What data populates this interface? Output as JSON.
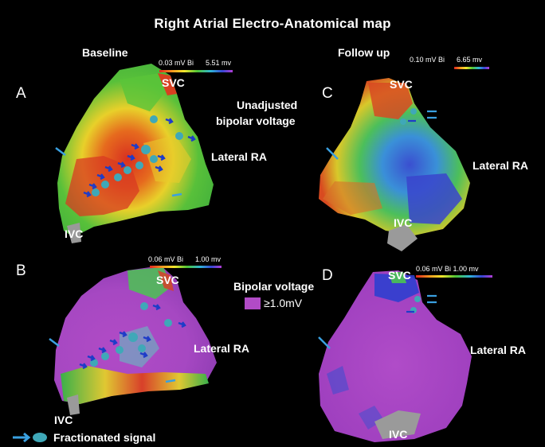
{
  "title": "Right Atrial Electro-Anatomical map",
  "panels": {
    "baseline_label": "Baseline",
    "followup_label": "Follow up",
    "a": {
      "letter": "A",
      "scale_min": "0.03 mV Bi",
      "scale_max": "5.51 mv",
      "svc": "SVC",
      "ivc": "IVC",
      "lateral": "Lateral RA",
      "note_line1": "Unadjusted",
      "note_line2": "bipolar voltage"
    },
    "b": {
      "letter": "B",
      "scale_min": "0.06 mV Bi",
      "scale_max": "1.00 mv",
      "svc": "SVC",
      "ivc": "IVC",
      "lateral": "Lateral RA",
      "note": "Bipolar voltage",
      "threshold": "≥1.0mV"
    },
    "c": {
      "letter": "C",
      "scale_min": "0.10 mV Bi",
      "scale_max": "6.65 mv",
      "svc": "SVC",
      "ivc": "IVC",
      "lateral": "Lateral RA"
    },
    "d": {
      "letter": "D",
      "scale": "0.06 mV Bi 1.00 mv",
      "svc": "SVC",
      "ivc": "IVC",
      "lateral": "Lateral RA"
    }
  },
  "legend": {
    "fractionated": "Fractionated signal"
  },
  "colors": {
    "background": "#000000",
    "arrow": "#3aa0e0",
    "dot": "#3fa8b8",
    "magenta": "#b14bc6"
  }
}
